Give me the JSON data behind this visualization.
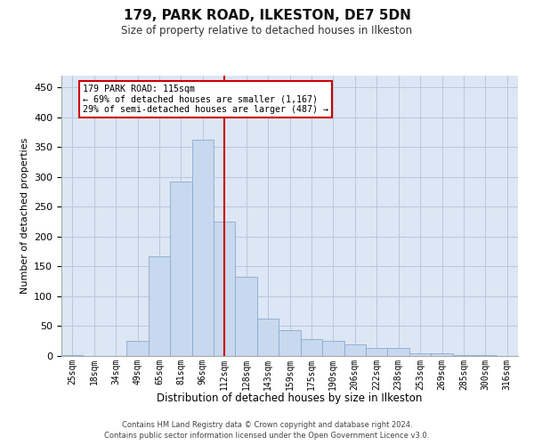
{
  "title1": "179, PARK ROAD, ILKESTON, DE7 5DN",
  "title2": "Size of property relative to detached houses in Ilkeston",
  "xlabel": "Distribution of detached houses by size in Ilkeston",
  "ylabel": "Number of detached properties",
  "footer1": "Contains HM Land Registry data © Crown copyright and database right 2024.",
  "footer2": "Contains public sector information licensed under the Open Government Licence v3.0.",
  "annotation_line1": "179 PARK ROAD: 115sqm",
  "annotation_line2": "← 69% of detached houses are smaller (1,167)",
  "annotation_line3": "29% of semi-detached houses are larger (487) →",
  "bar_color": "#c8d8ee",
  "bar_edge_color": "#88aad0",
  "grid_color": "#b8c8dc",
  "background_color": "#dde6f4",
  "vline_color": "#cc0000",
  "ylim": [
    0,
    470
  ],
  "yticks": [
    0,
    50,
    100,
    150,
    200,
    250,
    300,
    350,
    400,
    450
  ],
  "xtick_labels": [
    "25sqm",
    "18sqm",
    "34sqm",
    "49sqm",
    "65sqm",
    "81sqm",
    "96sqm",
    "112sqm",
    "128sqm",
    "143sqm",
    "159sqm",
    "175sqm",
    "190sqm",
    "206sqm",
    "222sqm",
    "238sqm",
    "253sqm",
    "269sqm",
    "285sqm",
    "300sqm",
    "316sqm"
  ],
  "values": [
    2,
    0,
    0,
    25,
    167,
    293,
    362,
    225,
    133,
    63,
    44,
    28,
    26,
    20,
    13,
    14,
    5,
    4,
    2,
    2,
    0
  ],
  "n_bins": 21,
  "bin_width": 1,
  "vline_bin": 7
}
